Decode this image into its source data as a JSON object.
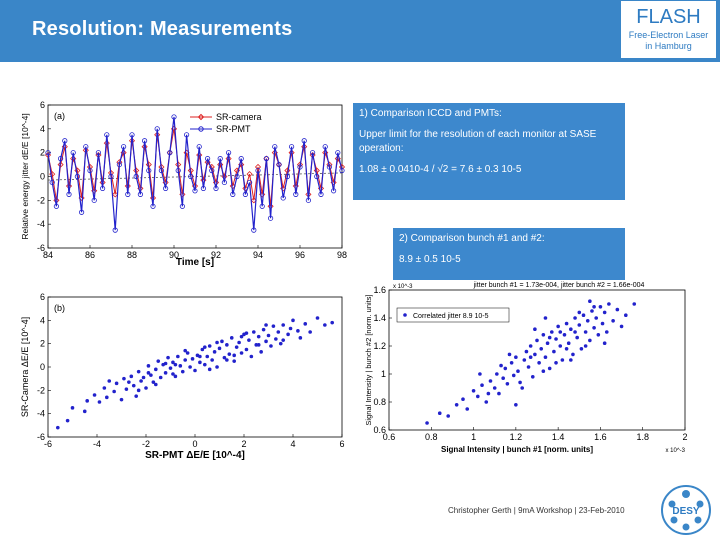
{
  "header": {
    "title": "Resolution: Measurements",
    "logo_name": "FLASH",
    "logo_sub1": "Free-Electron Laser",
    "logo_sub2": "in Hamburg"
  },
  "box1": {
    "line1": "1) Comparison ICCD and PMTs:",
    "line2": "Upper limit for the resolution of each monitor at SASE operation:",
    "formula": "1.08 ± 0.0410-4 / √2 = 7.6 ± 0.3 10-5"
  },
  "box2": {
    "line1": "2) Comparison bunch #1 and #2:",
    "formula": "8.9 ± 0.5 10-5"
  },
  "footer": {
    "credit": "Christopher Gerth | 9mA Workshop | 23-Feb-2010",
    "desy_logo_text": "DESY"
  },
  "colors": {
    "header_blue": "#3a86c8",
    "box_blue": "#3d88cd",
    "series_red": "#dd2222",
    "series_blue": "#2222cc"
  },
  "chart_data": [
    {
      "type": "line",
      "panel_label": "(a)",
      "xlabel": "Time [s]",
      "ylabel": "Relative energy jitter dE/E [10^-4]",
      "xlim": [
        84,
        98
      ],
      "ylim": [
        -6,
        6
      ],
      "xticks": [
        84,
        86,
        88,
        90,
        92,
        94,
        96,
        98
      ],
      "yticks": [
        -6,
        -4,
        -2,
        0,
        2,
        4,
        6
      ],
      "legend": "top-left",
      "series": [
        {
          "name": "SR-camera",
          "color": "#dd2222",
          "marker": "diamond",
          "x": [
            84.0,
            84.2,
            84.4,
            84.6,
            84.8,
            85.0,
            85.2,
            85.4,
            85.6,
            85.8,
            86.0,
            86.2,
            86.4,
            86.6,
            86.8,
            87.0,
            87.2,
            87.4,
            87.6,
            87.8,
            88.0,
            88.2,
            88.4,
            88.6,
            88.8,
            89.0,
            89.2,
            89.4,
            89.6,
            89.8,
            90.0,
            90.2,
            90.4,
            90.6,
            90.8,
            91.0,
            91.2,
            91.4,
            91.6,
            91.8,
            92.0,
            92.2,
            92.4,
            92.6,
            92.8,
            93.0,
            93.2,
            93.4,
            93.6,
            93.8,
            94.0,
            94.2,
            94.4,
            94.6,
            94.8,
            95.0,
            95.2,
            95.4,
            95.6,
            95.8,
            96.0,
            96.2,
            96.4,
            96.6,
            96.8,
            97.0,
            97.2,
            97.4,
            97.6,
            97.8,
            98.0
          ],
          "y": [
            1.8,
            0.2,
            -2.0,
            1.0,
            2.5,
            -0.8,
            1.5,
            0.5,
            -1.8,
            2.2,
            0.8,
            -1.2,
            1.8,
            -0.5,
            2.8,
            0.3,
            -1.5,
            1.2,
            2.0,
            -0.8,
            3.0,
            0.5,
            -1.0,
            2.5,
            1.0,
            -1.8,
            3.5,
            0.8,
            -0.5,
            2.0,
            4.0,
            1.0,
            -1.5,
            2.0,
            0.5,
            -0.8,
            1.8,
            -0.3,
            1.2,
            0.8,
            -0.5,
            1.0,
            0.0,
            1.5,
            -0.8,
            0.5,
            1.0,
            -1.0,
            0.2,
            -2.0,
            0.8,
            -1.5,
            1.5,
            -2.5,
            2.0,
            1.0,
            -1.0,
            0.5,
            2.0,
            -0.8,
            1.0,
            2.5,
            -1.5,
            1.8,
            0.5,
            -1.0,
            2.0,
            1.0,
            -0.5,
            1.5,
            0.8
          ]
        },
        {
          "name": "SR-PMT",
          "color": "#2222cc",
          "marker": "circle",
          "x": [
            84.0,
            84.2,
            84.4,
            84.6,
            84.8,
            85.0,
            85.2,
            85.4,
            85.6,
            85.8,
            86.0,
            86.2,
            86.4,
            86.6,
            86.8,
            87.0,
            87.2,
            87.4,
            87.6,
            87.8,
            88.0,
            88.2,
            88.4,
            88.6,
            88.8,
            89.0,
            89.2,
            89.4,
            89.6,
            89.8,
            90.0,
            90.2,
            90.4,
            90.6,
            90.8,
            91.0,
            91.2,
            91.4,
            91.6,
            91.8,
            92.0,
            92.2,
            92.4,
            92.6,
            92.8,
            93.0,
            93.2,
            93.4,
            93.6,
            93.8,
            94.0,
            94.2,
            94.4,
            94.6,
            94.8,
            95.0,
            95.2,
            95.4,
            95.6,
            95.8,
            96.0,
            96.2,
            96.4,
            96.6,
            96.8,
            97.0,
            97.2,
            97.4,
            97.6,
            97.8,
            98.0
          ],
          "y": [
            2.0,
            -0.5,
            -2.5,
            1.5,
            3.0,
            -1.5,
            2.0,
            0.0,
            -3.0,
            2.5,
            0.5,
            -2.0,
            2.0,
            -1.0,
            3.5,
            0.0,
            -4.5,
            1.0,
            2.5,
            -1.5,
            3.5,
            0.0,
            -1.5,
            3.0,
            0.5,
            -2.5,
            4.0,
            0.5,
            -1.0,
            2.0,
            5.0,
            0.5,
            -2.5,
            3.5,
            0.0,
            -1.2,
            2.5,
            -1.0,
            1.5,
            0.5,
            -1.0,
            1.5,
            -0.5,
            2.0,
            -1.5,
            0.0,
            1.5,
            -1.5,
            -0.5,
            -4.5,
            0.5,
            -2.5,
            1.5,
            -3.5,
            2.5,
            1.0,
            -1.8,
            0.0,
            2.5,
            -1.5,
            0.8,
            3.0,
            -2.0,
            2.0,
            0.0,
            -1.5,
            2.5,
            0.8,
            -1.2,
            2.0,
            0.5
          ]
        }
      ]
    },
    {
      "type": "scatter",
      "panel_label": "(b)",
      "xlabel": "SR-PMT ΔE/E [10^-4]",
      "ylabel": "SR-Camera ΔE/E [10^-4]",
      "xlim": [
        -6,
        6
      ],
      "ylim": [
        -6,
        6
      ],
      "xticks": [
        -6,
        -4,
        -2,
        0,
        2,
        4,
        6
      ],
      "yticks": [
        -6,
        -4,
        -2,
        0,
        2,
        4,
        6
      ],
      "color": "#2222cc",
      "points": [
        [
          -5.2,
          -4.6
        ],
        [
          -5.0,
          -3.5
        ],
        [
          -4.5,
          -3.8
        ],
        [
          -4.4,
          -2.9
        ],
        [
          -4.1,
          -2.4
        ],
        [
          -3.9,
          -3.0
        ],
        [
          -3.7,
          -1.8
        ],
        [
          -3.6,
          -2.6
        ],
        [
          -3.3,
          -2.1
        ],
        [
          -3.2,
          -1.4
        ],
        [
          -3.0,
          -2.8
        ],
        [
          -2.9,
          -1.0
        ],
        [
          -2.8,
          -1.9
        ],
        [
          -2.6,
          -0.8
        ],
        [
          -2.5,
          -1.6
        ],
        [
          -2.4,
          -2.5
        ],
        [
          -2.3,
          -0.4
        ],
        [
          -2.2,
          -1.2
        ],
        [
          -2.1,
          -0.9
        ],
        [
          -2.0,
          -1.8
        ],
        [
          -1.9,
          0.1
        ],
        [
          -1.8,
          -0.7
        ],
        [
          -1.7,
          -1.3
        ],
        [
          -1.6,
          -0.2
        ],
        [
          -1.5,
          0.5
        ],
        [
          -1.4,
          -0.9
        ],
        [
          -1.3,
          0.2
        ],
        [
          -1.2,
          -0.5
        ],
        [
          -1.1,
          0.8
        ],
        [
          -1.0,
          -0.1
        ],
        [
          -0.9,
          0.4
        ],
        [
          -0.8,
          -0.8
        ],
        [
          -0.7,
          0.9
        ],
        [
          -0.6,
          0.1
        ],
        [
          -0.5,
          -0.4
        ],
        [
          -0.4,
          0.6
        ],
        [
          -0.3,
          1.2
        ],
        [
          -0.2,
          0.0
        ],
        [
          -0.1,
          0.7
        ],
        [
          0.0,
          -0.3
        ],
        [
          0.1,
          1.0
        ],
        [
          0.2,
          0.4
        ],
        [
          0.3,
          1.5
        ],
        [
          0.4,
          0.2
        ],
        [
          0.5,
          0.9
        ],
        [
          0.6,
          1.8
        ],
        [
          0.7,
          0.6
        ],
        [
          0.8,
          1.3
        ],
        [
          0.9,
          0.0
        ],
        [
          1.0,
          1.6
        ],
        [
          1.1,
          2.2
        ],
        [
          1.2,
          0.8
        ],
        [
          1.3,
          1.9
        ],
        [
          1.4,
          1.1
        ],
        [
          1.5,
          2.5
        ],
        [
          1.6,
          0.5
        ],
        [
          1.7,
          1.7
        ],
        [
          1.8,
          2.1
        ],
        [
          1.9,
          1.2
        ],
        [
          2.0,
          2.8
        ],
        [
          2.1,
          1.5
        ],
        [
          2.2,
          2.3
        ],
        [
          2.3,
          0.9
        ],
        [
          2.4,
          3.0
        ],
        [
          2.5,
          1.9
        ],
        [
          2.6,
          2.6
        ],
        [
          2.7,
          1.3
        ],
        [
          2.8,
          3.2
        ],
        [
          2.9,
          2.2
        ],
        [
          3.0,
          2.7
        ],
        [
          3.1,
          1.8
        ],
        [
          3.2,
          3.5
        ],
        [
          3.3,
          2.4
        ],
        [
          3.4,
          3.0
        ],
        [
          3.5,
          2.0
        ],
        [
          3.6,
          3.6
        ],
        [
          3.8,
          2.8
        ],
        [
          3.9,
          3.3
        ],
        [
          4.0,
          4.0
        ],
        [
          4.2,
          3.1
        ],
        [
          4.3,
          2.5
        ],
        [
          4.5,
          3.7
        ],
        [
          4.7,
          3.0
        ],
        [
          5.0,
          4.2
        ],
        [
          5.3,
          3.6
        ],
        [
          -2.7,
          -1.3
        ],
        [
          -1.9,
          -0.5
        ],
        [
          -0.9,
          -0.6
        ],
        [
          0.2,
          0.9
        ],
        [
          1.3,
          0.6
        ],
        [
          2.1,
          2.9
        ],
        [
          -3.5,
          -1.2
        ],
        [
          -1.2,
          0.3
        ],
        [
          0.6,
          -0.2
        ],
        [
          1.9,
          2.6
        ],
        [
          2.9,
          3.6
        ],
        [
          -0.4,
          1.4
        ],
        [
          0.9,
          2.1
        ],
        [
          -2.3,
          -2.0
        ],
        [
          3.6,
          2.3
        ],
        [
          -1.6,
          -1.5
        ],
        [
          0.4,
          1.7
        ],
        [
          1.6,
          1.0
        ],
        [
          2.6,
          1.9
        ],
        [
          -0.8,
          0.2
        ],
        [
          -5.6,
          -5.2
        ],
        [
          5.6,
          3.8
        ]
      ]
    },
    {
      "type": "scatter",
      "panel_label": "",
      "title": "jitter bunch #1 = 1.73e-004, jitter bunch #2 = 1.66e-004",
      "xlabel": "Signal Intensity | bunch #1 [norm. units]",
      "ylabel": "Signal Intensity | bunch #2 [norm. units]",
      "xlim": [
        0.6,
        2.0
      ],
      "ylim": [
        0.6,
        1.6
      ],
      "xticks": [
        0.6,
        0.8,
        1.0,
        1.2,
        1.4,
        1.6,
        1.8,
        2.0
      ],
      "yticks": [
        0.6,
        0.8,
        1.0,
        1.2,
        1.4,
        1.6
      ],
      "xtick_labels": [
        "0.6",
        "0.8",
        "1",
        "1.2",
        "1.4",
        "1.6",
        "1.8",
        "2"
      ],
      "ytick_labels": [
        "0.6",
        "0.8",
        "1",
        "1.2",
        "1.4",
        "1.6"
      ],
      "x_multiplier": "x 10^-3",
      "y_multiplier": "x 10^-3",
      "legend": "top-left",
      "legend_entry": "Correlated jitter 8.9 10-5",
      "color": "#2222cc",
      "points": [
        [
          0.78,
          0.65
        ],
        [
          0.84,
          0.72
        ],
        [
          0.88,
          0.7
        ],
        [
          0.92,
          0.78
        ],
        [
          0.95,
          0.82
        ],
        [
          0.97,
          0.75
        ],
        [
          1.0,
          0.88
        ],
        [
          1.02,
          0.84
        ],
        [
          1.04,
          0.92
        ],
        [
          1.06,
          0.8
        ],
        [
          1.08,
          0.95
        ],
        [
          1.1,
          0.9
        ],
        [
          1.11,
          1.0
        ],
        [
          1.12,
          0.86
        ],
        [
          1.14,
          0.97
        ],
        [
          1.15,
          1.04
        ],
        [
          1.16,
          0.93
        ],
        [
          1.18,
          1.08
        ],
        [
          1.19,
          0.99
        ],
        [
          1.2,
          1.12
        ],
        [
          1.21,
          1.02
        ],
        [
          1.22,
          0.94
        ],
        [
          1.24,
          1.1
        ],
        [
          1.25,
          1.16
        ],
        [
          1.26,
          1.05
        ],
        [
          1.27,
          1.2
        ],
        [
          1.28,
          0.98
        ],
        [
          1.29,
          1.14
        ],
        [
          1.3,
          1.24
        ],
        [
          1.31,
          1.08
        ],
        [
          1.32,
          1.18
        ],
        [
          1.33,
          1.28
        ],
        [
          1.34,
          1.12
        ],
        [
          1.35,
          1.22
        ],
        [
          1.36,
          1.04
        ],
        [
          1.37,
          1.3
        ],
        [
          1.38,
          1.16
        ],
        [
          1.39,
          1.25
        ],
        [
          1.4,
          1.34
        ],
        [
          1.41,
          1.2
        ],
        [
          1.42,
          1.1
        ],
        [
          1.43,
          1.28
        ],
        [
          1.44,
          1.36
        ],
        [
          1.45,
          1.22
        ],
        [
          1.46,
          1.32
        ],
        [
          1.47,
          1.14
        ],
        [
          1.48,
          1.4
        ],
        [
          1.49,
          1.26
        ],
        [
          1.5,
          1.35
        ],
        [
          1.51,
          1.18
        ],
        [
          1.52,
          1.42
        ],
        [
          1.53,
          1.3
        ],
        [
          1.54,
          1.38
        ],
        [
          1.55,
          1.24
        ],
        [
          1.56,
          1.45
        ],
        [
          1.57,
          1.33
        ],
        [
          1.58,
          1.4
        ],
        [
          1.59,
          1.28
        ],
        [
          1.6,
          1.48
        ],
        [
          1.61,
          1.36
        ],
        [
          1.62,
          1.44
        ],
        [
          1.63,
          1.3
        ],
        [
          1.64,
          1.5
        ],
        [
          1.66,
          1.38
        ],
        [
          1.68,
          1.46
        ],
        [
          1.7,
          1.34
        ],
        [
          1.72,
          1.42
        ],
        [
          1.76,
          1.5
        ],
        [
          1.13,
          1.06
        ],
        [
          1.23,
          0.9
        ],
        [
          1.27,
          1.12
        ],
        [
          1.33,
          1.02
        ],
        [
          1.36,
          1.26
        ],
        [
          1.41,
          1.3
        ],
        [
          1.46,
          1.1
        ],
        [
          1.5,
          1.44
        ],
        [
          1.53,
          1.2
        ],
        [
          1.57,
          1.48
        ],
        [
          1.07,
          0.86
        ],
        [
          1.17,
          1.14
        ],
        [
          1.29,
          1.32
        ],
        [
          1.44,
          1.18
        ],
        [
          1.62,
          1.22
        ],
        [
          1.2,
          0.78
        ],
        [
          1.34,
          1.4
        ],
        [
          1.48,
          1.3
        ],
        [
          1.03,
          1.0
        ],
        [
          1.39,
          1.08
        ],
        [
          1.55,
          1.52
        ]
      ]
    }
  ]
}
